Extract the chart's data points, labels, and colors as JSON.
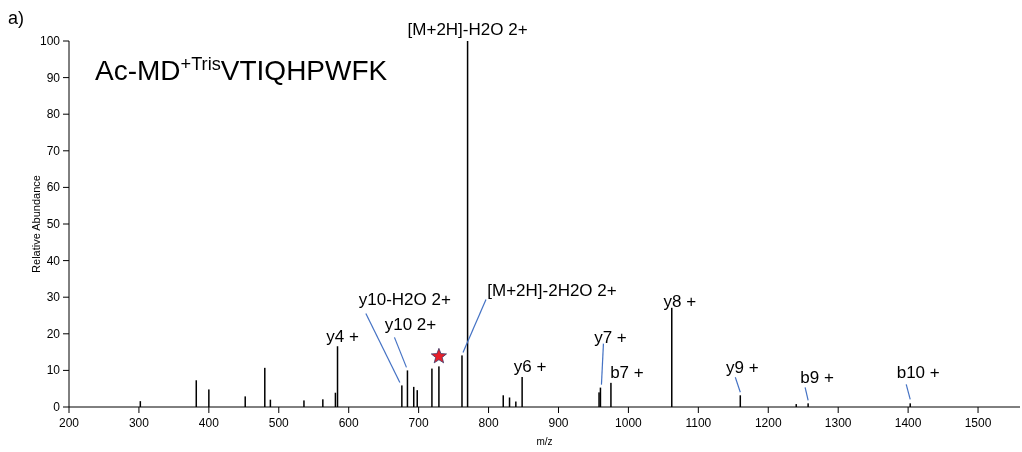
{
  "chart_data": {
    "type": "bar",
    "title": "Ac-MD$^{+Tris}$VTIQHPWFK",
    "xlabel": "m/z",
    "ylabel": "Relative Abundance",
    "x": [
      302,
      382,
      400,
      452,
      480,
      488,
      536,
      563,
      581,
      584,
      676,
      684,
      693,
      698,
      719,
      729,
      762,
      770,
      821,
      830,
      839,
      848,
      958,
      960,
      975,
      1062,
      1160,
      1240,
      1257,
      1403
    ],
    "values": [
      1.6,
      7.3,
      4.8,
      2.9,
      10.7,
      2.0,
      1.8,
      2.1,
      3.9,
      16.6,
      5.9,
      10.0,
      5.5,
      4.6,
      10.5,
      11.1,
      14.1,
      100,
      3.2,
      2.6,
      1.5,
      8.2,
      4.0,
      5.3,
      6.6,
      27.1,
      3.2,
      0.8,
      1.0,
      1.0
    ],
    "color": "#000000",
    "xlim": [
      200,
      1560
    ],
    "xticks": [
      200,
      300,
      400,
      500,
      600,
      700,
      800,
      900,
      1000,
      1100,
      1200,
      1300,
      1400,
      1500
    ],
    "ylim": [
      0,
      100
    ],
    "yticks": [
      0,
      10,
      20,
      30,
      40,
      50,
      60,
      70,
      80,
      90,
      100
    ],
    "annotations": [
      "a)",
      {
        "text": "[M+2H]-H2O 2+",
        "x": 770,
        "y": 100
      },
      {
        "text": "y4 +",
        "x": 584,
        "y": 16.6
      },
      {
        "text": "y10-H2O 2+",
        "x": 676,
        "y": 5.9
      },
      {
        "text": "y10 2+",
        "x": 684,
        "y": 10.0
      },
      {
        "text": "[M+2H]-2H2O 2+",
        "x": 762,
        "y": 14.1
      },
      {
        "text": "y6 +",
        "x": 848,
        "y": 8.2
      },
      {
        "text": "y7 +",
        "x": 960,
        "y": 5.3
      },
      {
        "text": "b7 +",
        "x": 975,
        "y": 6.6
      },
      {
        "text": "y8 +",
        "x": 1062,
        "y": 27.1
      },
      {
        "text": "y9 +",
        "x": 1160,
        "y": 3.2
      },
      {
        "text": "b9 +",
        "x": 1257,
        "y": 1.0
      },
      {
        "text": "b10 +",
        "x": 1403,
        "y": 1.0
      }
    ]
  }
}
